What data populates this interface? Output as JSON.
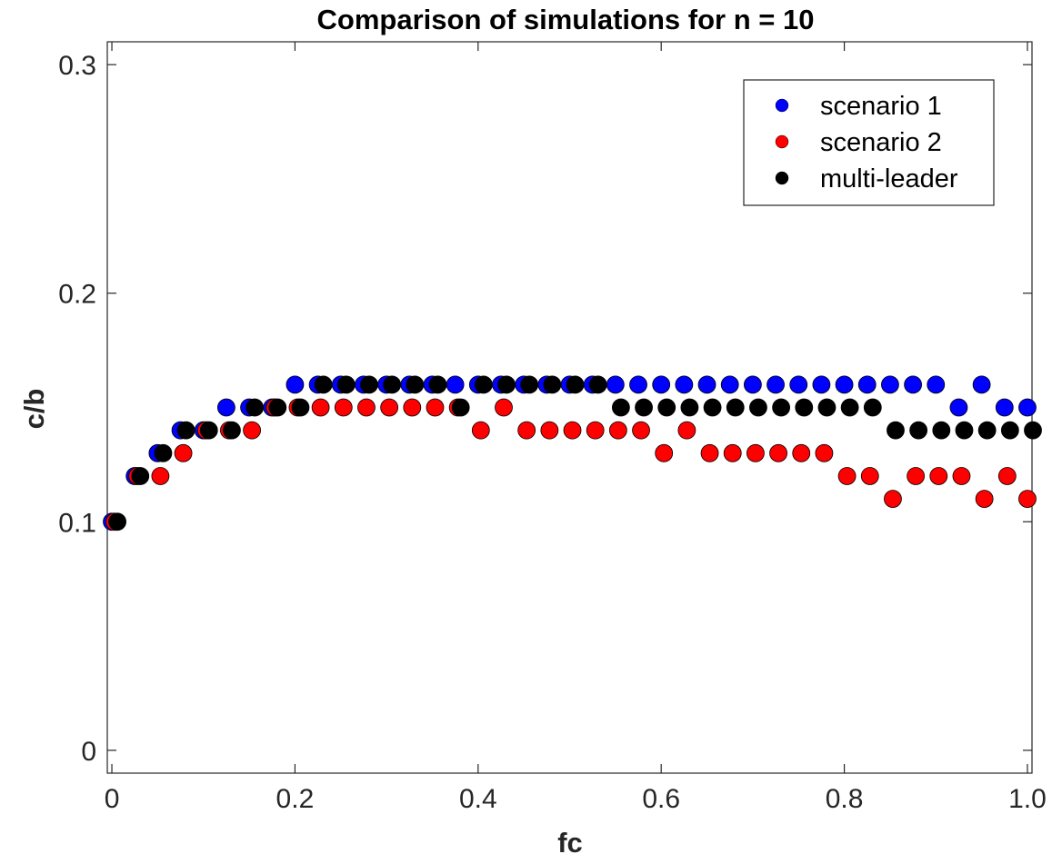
{
  "chart_data": {
    "type": "scatter",
    "title": "Comparison of simulations for n = 10",
    "xlabel": "fc",
    "ylabel": "c/b",
    "xlim": [
      -0.005,
      1.005
    ],
    "ylim": [
      -0.01,
      0.31
    ],
    "xticks": [
      0,
      0.2,
      0.4,
      0.6,
      0.8,
      1.0
    ],
    "xtick_labels": [
      "0",
      "0.2",
      "0.4",
      "0.6",
      "0.8",
      "1.0"
    ],
    "yticks": [
      0,
      0.1,
      0.2,
      0.3
    ],
    "ytick_labels": [
      "0",
      "0.1",
      "0.2",
      "0.3"
    ],
    "grid": false,
    "legend_position": "top-right",
    "series": [
      {
        "name": "scenario 1",
        "color": "#0000ff",
        "x": [
          0,
          0.025,
          0.05,
          0.075,
          0.1,
          0.125,
          0.15,
          0.175,
          0.2,
          0.225,
          0.25,
          0.275,
          0.3,
          0.325,
          0.35,
          0.375,
          0.4,
          0.425,
          0.45,
          0.475,
          0.5,
          0.525,
          0.55,
          0.575,
          0.6,
          0.625,
          0.65,
          0.675,
          0.7,
          0.725,
          0.75,
          0.775,
          0.8,
          0.825,
          0.85,
          0.875,
          0.9,
          0.925,
          0.95,
          0.975,
          1.0
        ],
        "y": [
          0.1,
          0.12,
          0.13,
          0.14,
          0.14,
          0.15,
          0.15,
          0.15,
          0.16,
          0.16,
          0.16,
          0.16,
          0.16,
          0.16,
          0.16,
          0.16,
          0.16,
          0.16,
          0.16,
          0.16,
          0.16,
          0.16,
          0.16,
          0.16,
          0.16,
          0.16,
          0.16,
          0.16,
          0.16,
          0.16,
          0.16,
          0.16,
          0.16,
          0.16,
          0.16,
          0.16,
          0.16,
          0.15,
          0.16,
          0.15,
          0.15
        ]
      },
      {
        "name": "scenario 2",
        "color": "#ff0000",
        "x": [
          0.003,
          0.028,
          0.053,
          0.078,
          0.103,
          0.128,
          0.153,
          0.178,
          0.203,
          0.228,
          0.253,
          0.278,
          0.303,
          0.328,
          0.353,
          0.378,
          0.403,
          0.428,
          0.453,
          0.478,
          0.503,
          0.528,
          0.553,
          0.578,
          0.603,
          0.628,
          0.653,
          0.678,
          0.703,
          0.728,
          0.753,
          0.778,
          0.803,
          0.828,
          0.853,
          0.878,
          0.903,
          0.928,
          0.953,
          0.978,
          1.0
        ],
        "y": [
          0.1,
          0.12,
          0.12,
          0.13,
          0.14,
          0.14,
          0.14,
          0.15,
          0.15,
          0.15,
          0.15,
          0.15,
          0.15,
          0.15,
          0.15,
          0.15,
          0.14,
          0.15,
          0.14,
          0.14,
          0.14,
          0.14,
          0.14,
          0.14,
          0.13,
          0.14,
          0.13,
          0.13,
          0.13,
          0.13,
          0.13,
          0.13,
          0.12,
          0.12,
          0.11,
          0.12,
          0.12,
          0.12,
          0.11,
          0.12,
          0.11
        ]
      },
      {
        "name": "multi-leader",
        "color": "#000000",
        "x": [
          0.006,
          0.031,
          0.056,
          0.081,
          0.106,
          0.131,
          0.156,
          0.181,
          0.206,
          0.231,
          0.256,
          0.281,
          0.306,
          0.331,
          0.356,
          0.381,
          0.406,
          0.431,
          0.456,
          0.481,
          0.506,
          0.531,
          0.556,
          0.581,
          0.606,
          0.631,
          0.656,
          0.681,
          0.706,
          0.731,
          0.756,
          0.781,
          0.806,
          0.831,
          0.856,
          0.881,
          0.906,
          0.931,
          0.956,
          0.981,
          1.006
        ],
        "y": [
          0.1,
          0.12,
          0.13,
          0.14,
          0.14,
          0.14,
          0.15,
          0.15,
          0.15,
          0.16,
          0.16,
          0.16,
          0.16,
          0.16,
          0.16,
          0.15,
          0.16,
          0.16,
          0.16,
          0.16,
          0.16,
          0.16,
          0.15,
          0.15,
          0.15,
          0.15,
          0.15,
          0.15,
          0.15,
          0.15,
          0.15,
          0.15,
          0.15,
          0.15,
          0.14,
          0.14,
          0.14,
          0.14,
          0.14,
          0.14,
          0.14
        ]
      }
    ]
  }
}
